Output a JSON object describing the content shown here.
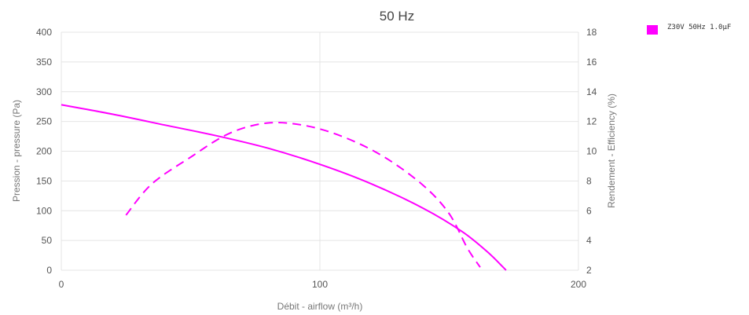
{
  "chart_data": {
    "type": "line",
    "title": "50 Hz",
    "xlabel": "Débit - airflow (m³/h)",
    "ylabel_left": "Pression - pressure (Pa)",
    "ylabel_right": "Rendement - Efficiency (%)",
    "xlim": [
      0,
      200
    ],
    "ylim_left": [
      0,
      400
    ],
    "ylim_right": [
      2,
      18
    ],
    "x_ticks": [
      "0",
      "100",
      "200"
    ],
    "y_left_ticks": [
      "0",
      "50",
      "100",
      "150",
      "200",
      "250",
      "300",
      "350",
      "400"
    ],
    "y_right_ticks": [
      "2",
      "4",
      "6",
      "8",
      "10",
      "12",
      "14",
      "16",
      "18"
    ],
    "grid": true,
    "legend_position": "top-right",
    "series": [
      {
        "name": "Z30V 50Hz 1.0µF",
        "axis": "left",
        "style": "solid",
        "color": "#ff00ff",
        "x": [
          0,
          20,
          40,
          60,
          80,
          100,
          120,
          140,
          155,
          165,
          172
        ],
        "y": [
          278,
          262,
          244,
          226,
          205,
          178,
          145,
          104,
          65,
          30,
          0
        ]
      },
      {
        "name": "",
        "axis": "right",
        "style": "dashed",
        "color": "#ff00ff",
        "x": [
          25,
          35,
          50,
          65,
          80,
          95,
          110,
          125,
          140,
          150,
          157,
          162
        ],
        "y": [
          5.7,
          7.8,
          9.6,
          11.2,
          11.9,
          11.7,
          10.9,
          9.6,
          7.7,
          5.8,
          3.5,
          2.2
        ]
      }
    ]
  }
}
